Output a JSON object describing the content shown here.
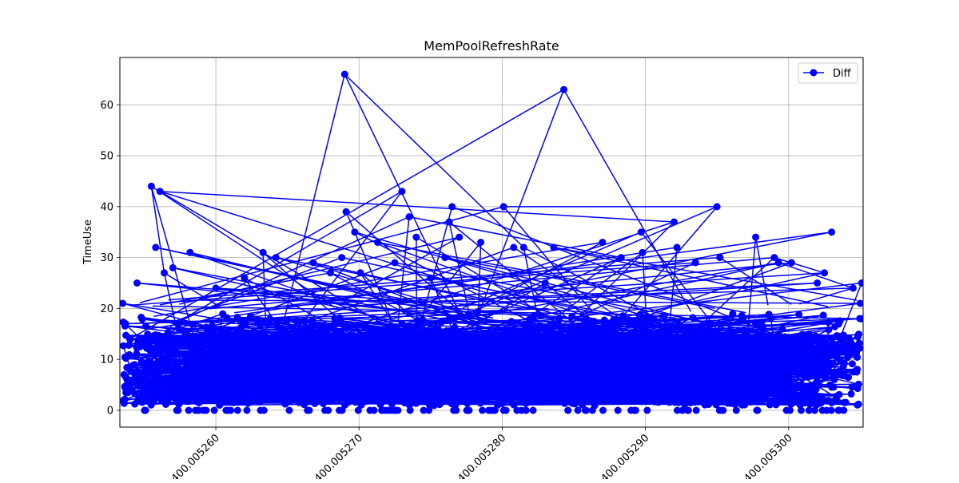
{
  "chart_data": {
    "type": "line",
    "title": "MemPoolRefreshRate",
    "xlabel": "",
    "ylabel": "TimeUse",
    "ylim": [
      -3.3,
      69.3
    ],
    "xlim": [
      400.0052533,
      400.0053052
    ],
    "grid": true,
    "legend_position": "top-right",
    "yticks": [
      0,
      10,
      20,
      30,
      40,
      50,
      60
    ],
    "xticks": [
      400.00526,
      400.00527,
      400.00528,
      400.00529,
      400.0053
    ],
    "xtick_labels": [
      "400.005260",
      "400.005270",
      "400.005280",
      "400.005290",
      "400.005300"
    ],
    "series": [
      {
        "name": "Diff",
        "color": "#0000ff",
        "marker": "circle",
        "note_dense_region": "thousands of points concentrated between y=0 and y=20 across the full x range",
        "points": [
          [
            400.0052535,
            21
          ],
          [
            400.0052537,
            17
          ],
          [
            400.005254,
            14
          ],
          [
            400.0052545,
            25
          ],
          [
            400.005255,
            4
          ],
          [
            400.0052555,
            44
          ],
          [
            400.0052558,
            32
          ],
          [
            400.0052561,
            43
          ],
          [
            400.0052564,
            27
          ],
          [
            400.005257,
            28
          ],
          [
            400.0052582,
            31
          ],
          [
            400.00526,
            24
          ],
          [
            400.005262,
            26
          ],
          [
            400.0052633,
            31
          ],
          [
            400.0052642,
            30
          ],
          [
            400.0052668,
            29
          ],
          [
            400.005268,
            27
          ],
          [
            400.0052688,
            30
          ],
          [
            400.005269,
            66
          ],
          [
            400.0052691,
            39
          ],
          [
            400.0052697,
            35
          ],
          [
            400.0052701,
            27
          ],
          [
            400.0052713,
            33
          ],
          [
            400.0052725,
            29
          ],
          [
            400.005273,
            43
          ],
          [
            400.0052735,
            38
          ],
          [
            400.005274,
            34
          ],
          [
            400.005275,
            26
          ],
          [
            400.005276,
            30
          ],
          [
            400.0052763,
            37
          ],
          [
            400.0052765,
            40
          ],
          [
            400.005277,
            34
          ],
          [
            400.0052785,
            33
          ],
          [
            400.0052801,
            40
          ],
          [
            400.0052808,
            32
          ],
          [
            400.0052815,
            32
          ],
          [
            400.005283,
            25
          ],
          [
            400.0052836,
            32
          ],
          [
            400.0052843,
            63
          ],
          [
            400.005287,
            33
          ],
          [
            400.0052883,
            30
          ],
          [
            400.0052897,
            35
          ],
          [
            400.0052898,
            31
          ],
          [
            400.005292,
            37
          ],
          [
            400.0052922,
            32
          ],
          [
            400.0052935,
            29
          ],
          [
            400.005295,
            40
          ],
          [
            400.0052952,
            30
          ],
          [
            400.0052977,
            34
          ],
          [
            400.005299,
            30
          ],
          [
            400.0052993,
            29
          ],
          [
            400.0053002,
            29
          ],
          [
            400.005302,
            25
          ],
          [
            400.0053025,
            27
          ],
          [
            400.005303,
            35
          ],
          [
            400.0053045,
            24
          ],
          [
            400.005305,
            21
          ],
          [
            400.0053051,
            25
          ],
          [
            400.0053051,
            18
          ]
        ]
      }
    ]
  }
}
